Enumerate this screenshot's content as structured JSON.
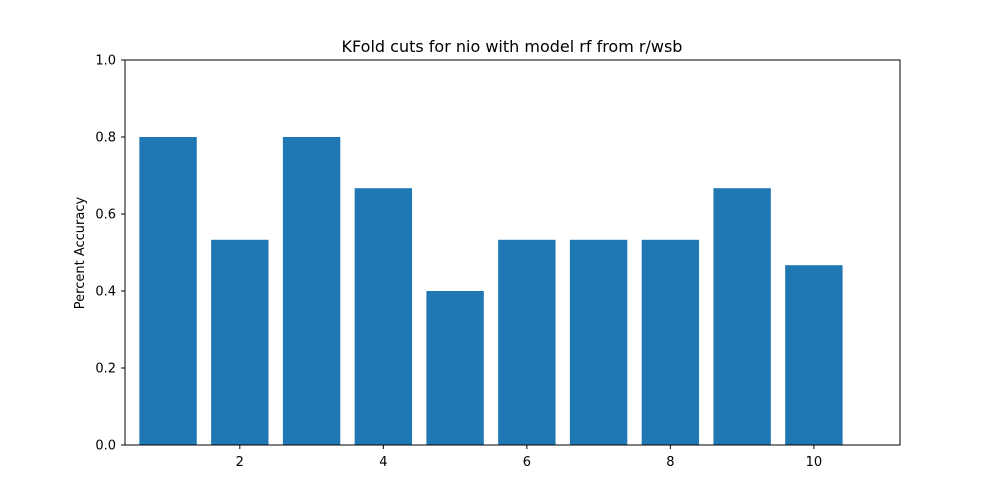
{
  "chart_data": {
    "type": "bar",
    "title": "KFold cuts for nio with model rf from r/wsb",
    "xlabel": "",
    "ylabel": "Percent Accuracy",
    "x": [
      1,
      2,
      3,
      4,
      5,
      6,
      7,
      8,
      9,
      10
    ],
    "values": [
      0.8,
      0.533,
      0.8,
      0.667,
      0.4,
      0.533,
      0.533,
      0.533,
      0.667,
      0.467
    ],
    "xlim": [
      0.4,
      11.2
    ],
    "ylim": [
      0.0,
      1.0
    ],
    "xticks": [
      2,
      4,
      6,
      8,
      10
    ],
    "xtick_labels": [
      "2",
      "4",
      "6",
      "8",
      "10"
    ],
    "yticks": [
      0.0,
      0.2,
      0.4,
      0.6,
      0.8,
      1.0
    ],
    "ytick_labels": [
      "0.0",
      "0.2",
      "0.4",
      "0.6",
      "0.8",
      "1.0"
    ],
    "bar_width": 0.8,
    "bar_color": "#1f77b4",
    "grid": false,
    "legend": "none"
  }
}
